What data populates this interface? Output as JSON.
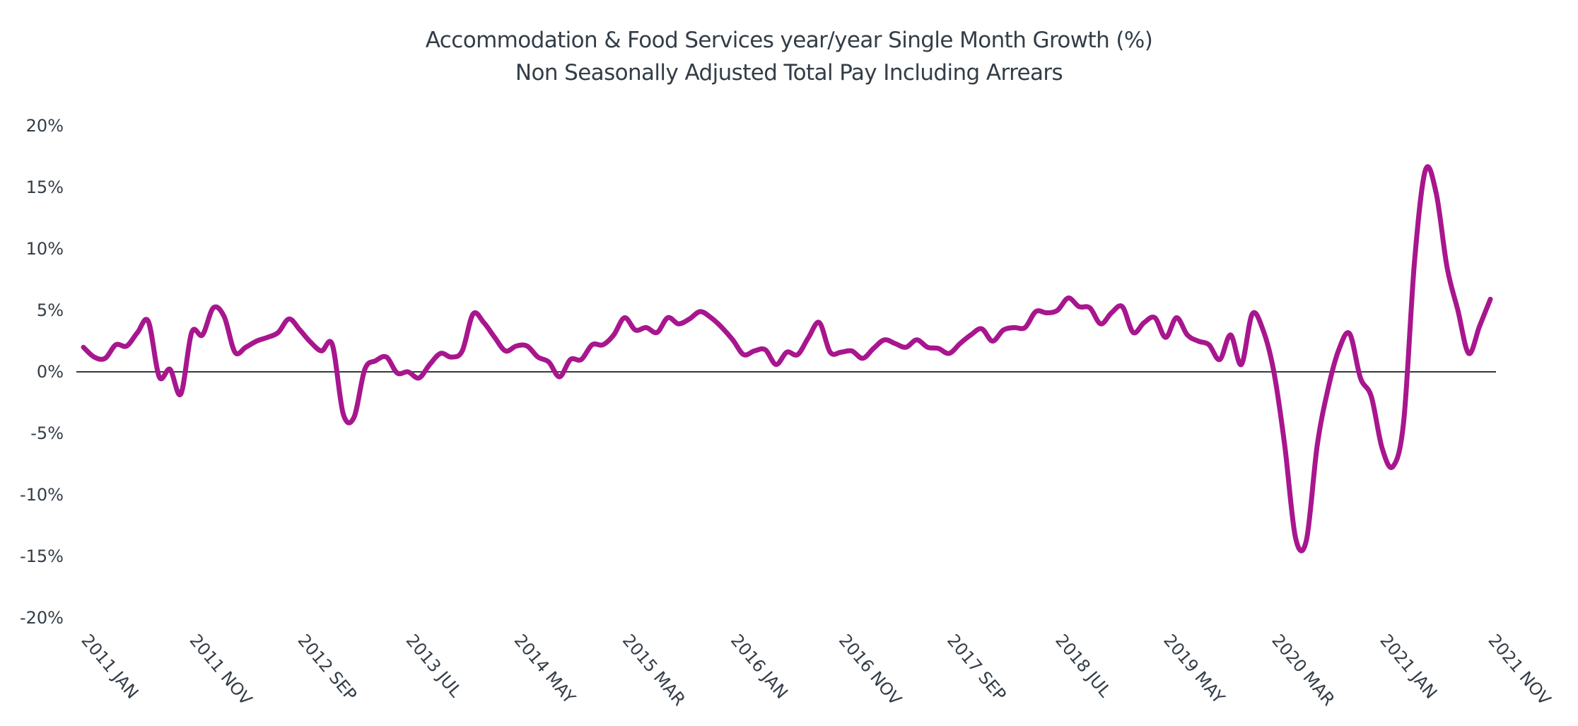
{
  "colors": {
    "series": "#a8168e",
    "text": "#333d47",
    "zero_line": "#333a40",
    "background": "#ffffff"
  },
  "chart_data": {
    "type": "line",
    "title": "Accommodation & Food Services year/year Single Month Growth (%)",
    "subtitle": "Non Seasonally Adjusted Total Pay Including Arrears",
    "xlabel": "",
    "ylabel": "",
    "ylim": [
      -20,
      20
    ],
    "yticks": [
      20,
      15,
      10,
      5,
      0,
      -5,
      -10,
      -15,
      -20
    ],
    "ytick_labels": [
      "20%",
      "15%",
      "10%",
      "5%",
      "0%",
      "-5%",
      "-10%",
      "-15%",
      "-20%"
    ],
    "x_start": "2011 JAN",
    "x_end": "2021 NOV",
    "x_unit": "month",
    "xtick_labels": [
      "2011 JAN",
      "2011 NOV",
      "2012 SEP",
      "2013 JUL",
      "2014 MAY",
      "2015 MAR",
      "2016 JAN",
      "2016 NOV",
      "2017 SEP",
      "2018 JUL",
      "2019 MAY",
      "2020 MAR",
      "2021 JAN",
      "2021 NOV"
    ],
    "xtick_month_index": [
      0,
      10,
      20,
      30,
      40,
      50,
      60,
      70,
      80,
      90,
      100,
      110,
      120,
      130
    ],
    "grid": false,
    "zero_line": true,
    "legend": "none",
    "series": [
      {
        "name": "Accommodation & Food Services y/y single month growth (%)",
        "values": [
          2.0,
          1.2,
          1.1,
          2.2,
          2.1,
          3.2,
          4.1,
          -0.4,
          0.2,
          -1.8,
          3.2,
          3.0,
          5.2,
          4.5,
          1.6,
          2.0,
          2.5,
          2.8,
          3.2,
          4.3,
          3.4,
          2.4,
          1.7,
          2.2,
          -3.4,
          -3.7,
          0.2,
          0.9,
          1.2,
          -0.1,
          0.0,
          -0.5,
          0.6,
          1.5,
          1.2,
          1.7,
          4.7,
          4.0,
          2.8,
          1.7,
          2.1,
          2.1,
          1.2,
          0.8,
          -0.4,
          1.0,
          1.0,
          2.2,
          2.2,
          3.0,
          4.4,
          3.4,
          3.6,
          3.2,
          4.4,
          3.9,
          4.3,
          4.9,
          4.4,
          3.6,
          2.6,
          1.4,
          1.7,
          1.8,
          0.6,
          1.6,
          1.4,
          2.8,
          4.0,
          1.6,
          1.6,
          1.7,
          1.1,
          1.9,
          2.6,
          2.3,
          2.0,
          2.6,
          2.0,
          1.9,
          1.5,
          2.3,
          3.0,
          3.5,
          2.5,
          3.4,
          3.6,
          3.6,
          4.9,
          4.8,
          5.0,
          6.0,
          5.3,
          5.2,
          3.9,
          4.8,
          5.3,
          3.2,
          4.0,
          4.4,
          2.8,
          4.4,
          3.0,
          2.5,
          2.2,
          1.0,
          3.0,
          0.6,
          4.7,
          3.4,
          0.0,
          -6.0,
          -13.5,
          -13.7,
          -6.0,
          -1.4,
          1.8,
          3.1,
          -0.5,
          -2.0,
          -6.2,
          -7.7,
          -4.0,
          9.0,
          16.4,
          14.5,
          8.5,
          5.0,
          1.5,
          3.7,
          5.9
        ]
      }
    ]
  }
}
